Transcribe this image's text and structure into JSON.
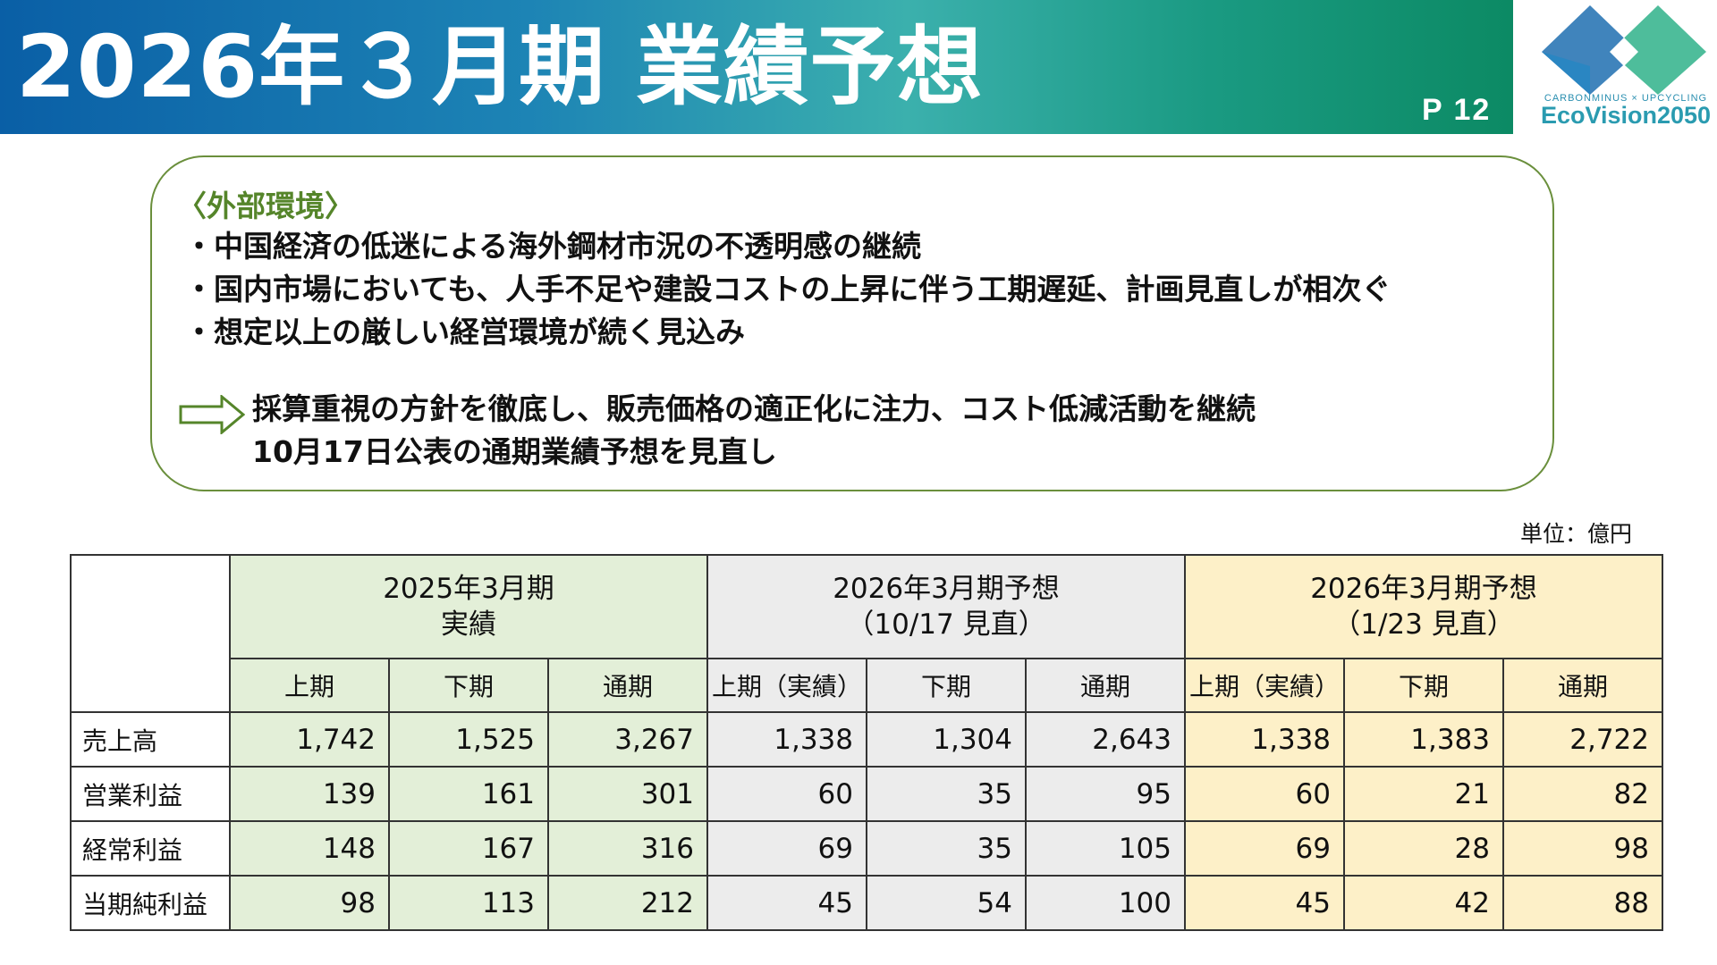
{
  "header": {
    "title": "2026年３月期 業績予想",
    "page_number": "P 12"
  },
  "logo": {
    "tagline": "CARBONMINUS × UPCYCLING",
    "brand": "EcoVision2050",
    "colors": [
      "#1f6fb0",
      "#27a6a0",
      "#35b97a"
    ]
  },
  "environment": {
    "heading": "〈外部環境〉",
    "bullets": [
      "・中国経済の低迷による海外鋼材市況の不透明感の継続",
      "・国内市場においても、人手不足や建設コストの上昇に伴う工期遅延、計画見直しが相次ぐ",
      "・想定以上の厳しい経営環境が続く見込み"
    ],
    "conclusion": [
      "採算重視の方針を徹底し、販売価格の適正化に注力、コスト低減活動を継続",
      "10月17日公表の通期業績予想を見直し"
    ],
    "arrow_icon": "right-arrow-outline-icon",
    "border_color": "#6a8f3c"
  },
  "unit_label": "単位：億円",
  "table": {
    "groups": [
      {
        "line1": "2025年3月期",
        "line2": "実績",
        "color": "#e3efd8"
      },
      {
        "line1": "2026年3月期予想",
        "line2": "（10/17 見直）",
        "color": "#ececec"
      },
      {
        "line1": "2026年3月期予想",
        "line2": "（1/23 見直）",
        "color": "#fdf0c8"
      }
    ],
    "subheaders": [
      "上期",
      "下期",
      "通期",
      "上期（実績）",
      "下期",
      "通期",
      "上期（実績）",
      "下期",
      "通期"
    ],
    "rows": [
      {
        "label": "売上高",
        "values": [
          "1,742",
          "1,525",
          "3,267",
          "1,338",
          "1,304",
          "2,643",
          "1,338",
          "1,383",
          "2,722"
        ]
      },
      {
        "label": "営業利益",
        "values": [
          "139",
          "161",
          "301",
          "60",
          "35",
          "95",
          "60",
          "21",
          "82"
        ]
      },
      {
        "label": "経常利益",
        "values": [
          "148",
          "167",
          "316",
          "69",
          "35",
          "105",
          "69",
          "28",
          "98"
        ]
      },
      {
        "label": "当期純利益",
        "values": [
          "98",
          "113",
          "212",
          "45",
          "54",
          "100",
          "45",
          "42",
          "88"
        ]
      }
    ]
  }
}
